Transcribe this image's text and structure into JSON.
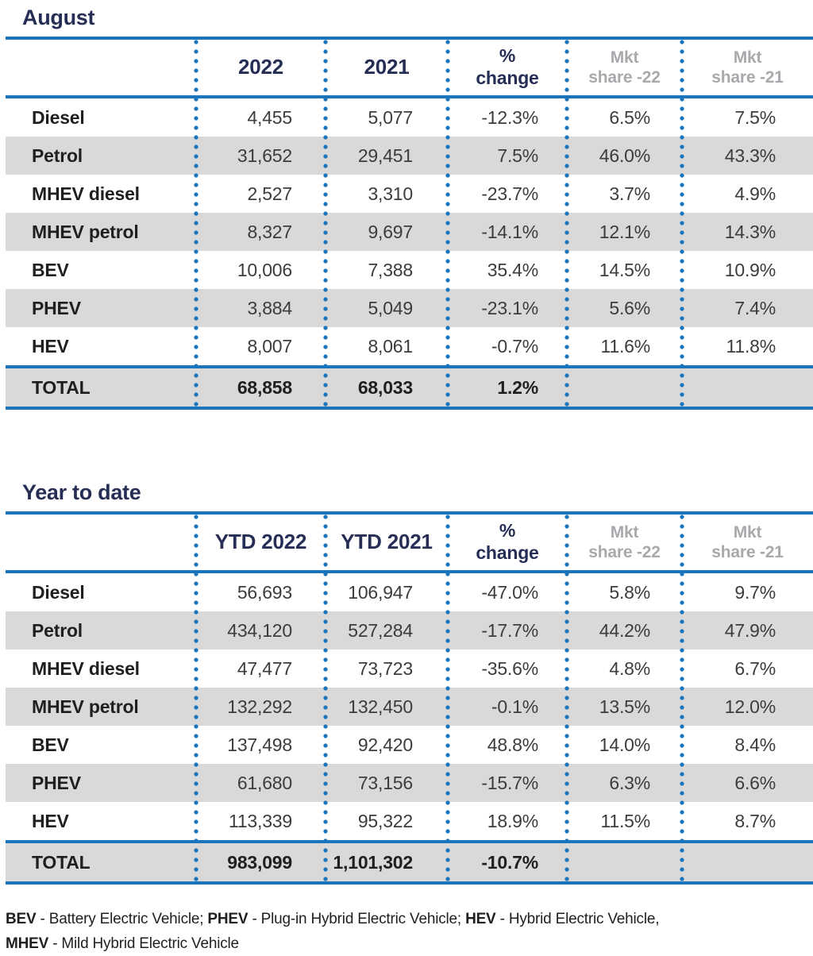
{
  "colors": {
    "line_blue": "#1b75bc",
    "navy": "#262e56",
    "mkt_gray": "#a7a9ac",
    "row_alt_gray": "#d9d9d9",
    "label_text": "#1f1f1f",
    "value_text": "#3c3c3c"
  },
  "tables": [
    {
      "title": "August",
      "headers": {
        "col2": "2022",
        "col3": "2021",
        "pct_line1": "%",
        "pct_line2": "change",
        "mkt22_line1": "Mkt",
        "mkt22_line2": "share -22",
        "mkt21_line1": "Mkt",
        "mkt21_line2": "share -21"
      },
      "rows": [
        {
          "label": "Diesel",
          "y1": "4,455",
          "y2": "5,077",
          "pct": "-12.3%",
          "m22": "6.5%",
          "m21": "7.5%"
        },
        {
          "label": "Petrol",
          "y1": "31,652",
          "y2": "29,451",
          "pct": "7.5%",
          "m22": "46.0%",
          "m21": "43.3%"
        },
        {
          "label": "MHEV diesel",
          "y1": "2,527",
          "y2": "3,310",
          "pct": "-23.7%",
          "m22": "3.7%",
          "m21": "4.9%"
        },
        {
          "label": "MHEV petrol",
          "y1": "8,327",
          "y2": "9,697",
          "pct": "-14.1%",
          "m22": "12.1%",
          "m21": "14.3%"
        },
        {
          "label": "BEV",
          "y1": "10,006",
          "y2": "7,388",
          "pct": "35.4%",
          "m22": "14.5%",
          "m21": "10.9%"
        },
        {
          "label": "PHEV",
          "y1": "3,884",
          "y2": "5,049",
          "pct": "-23.1%",
          "m22": "5.6%",
          "m21": "7.4%"
        },
        {
          "label": "HEV",
          "y1": "8,007",
          "y2": "8,061",
          "pct": "-0.7%",
          "m22": "11.6%",
          "m21": "11.8%"
        }
      ],
      "total": {
        "label": "TOTAL",
        "y1": "68,858",
        "y2": "68,033",
        "pct": "1.2%",
        "m22": "",
        "m21": ""
      }
    },
    {
      "title": "Year to date",
      "headers": {
        "col2": "YTD 2022",
        "col3": "YTD 2021",
        "pct_line1": "%",
        "pct_line2": "change",
        "mkt22_line1": "Mkt",
        "mkt22_line2": "share -22",
        "mkt21_line1": "Mkt",
        "mkt21_line2": "share -21"
      },
      "rows": [
        {
          "label": "Diesel",
          "y1": "56,693",
          "y2": "106,947",
          "pct": "-47.0%",
          "m22": "5.8%",
          "m21": "9.7%"
        },
        {
          "label": "Petrol",
          "y1": "434,120",
          "y2": "527,284",
          "pct": "-17.7%",
          "m22": "44.2%",
          "m21": "47.9%"
        },
        {
          "label": "MHEV diesel",
          "y1": "47,477",
          "y2": "73,723",
          "pct": "-35.6%",
          "m22": "4.8%",
          "m21": "6.7%"
        },
        {
          "label": "MHEV petrol",
          "y1": "132,292",
          "y2": "132,450",
          "pct": "-0.1%",
          "m22": "13.5%",
          "m21": "12.0%"
        },
        {
          "label": "BEV",
          "y1": "137,498",
          "y2": "92,420",
          "pct": "48.8%",
          "m22": "14.0%",
          "m21": "8.4%"
        },
        {
          "label": "PHEV",
          "y1": "61,680",
          "y2": "73,156",
          "pct": "-15.7%",
          "m22": "6.3%",
          "m21": "6.6%"
        },
        {
          "label": "HEV",
          "y1": "113,339",
          "y2": "95,322",
          "pct": "18.9%",
          "m22": "11.5%",
          "m21": "8.7%"
        }
      ],
      "total": {
        "label": "TOTAL",
        "y1": "983,099",
        "y2": "1,101,302",
        "pct": "-10.7%",
        "m22": "",
        "m21": ""
      }
    }
  ],
  "footnote": {
    "line1": [
      {
        "term": "BEV",
        "desc": " - Battery Electric Vehicle; "
      },
      {
        "term": "PHEV",
        "desc": " - Plug-in Hybrid Electric Vehicle; "
      },
      {
        "term": "HEV",
        "desc": " - Hybrid Electric Vehicle,"
      }
    ],
    "line2": [
      {
        "term": "MHEV",
        "desc": " - Mild Hybrid Electric Vehicle"
      }
    ]
  }
}
